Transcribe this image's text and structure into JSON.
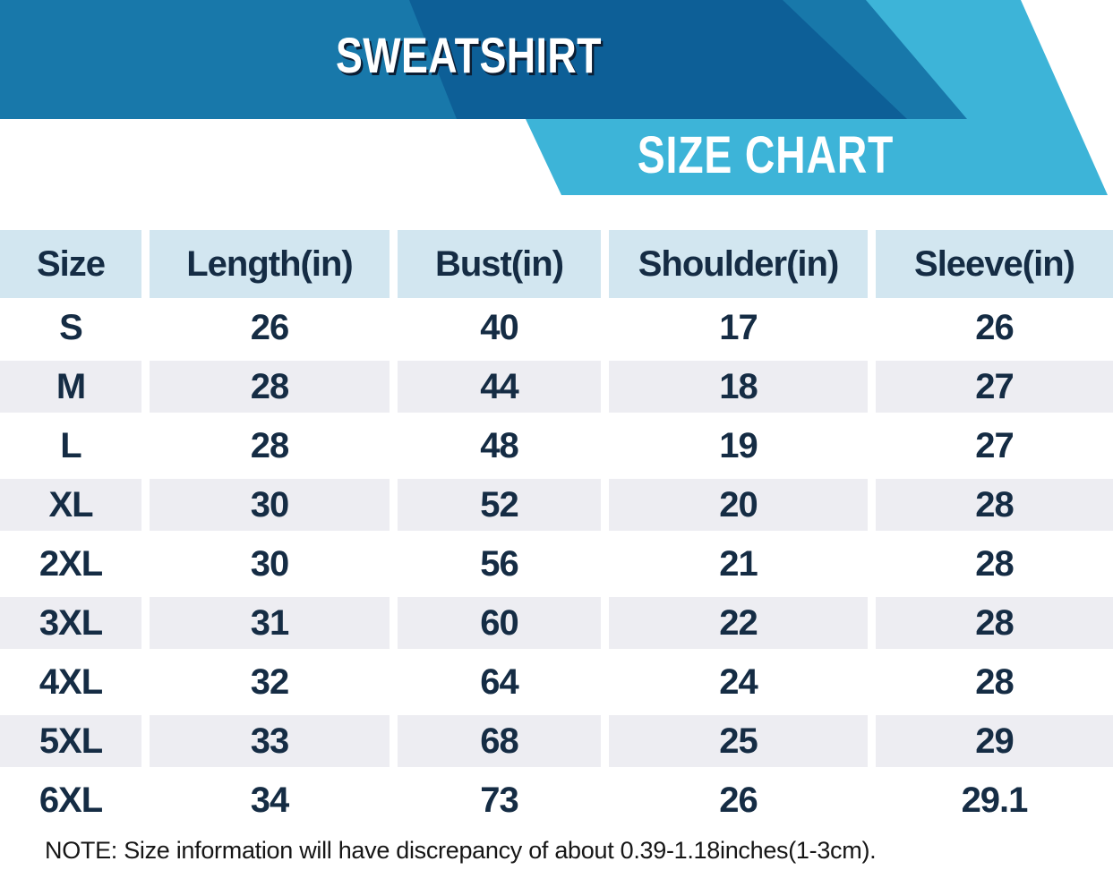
{
  "banner": {
    "product_title": "SWEATSHIRT",
    "chart_title": "SIZE CHART",
    "colors": {
      "ribbon_blue": "#1878aa",
      "ribbon_dark_blue": "#0d5f97",
      "ribbon_cyan": "#3db4d8",
      "title_text": "#ffffff",
      "title_shadow": "#0b1d33"
    }
  },
  "chart_data": {
    "type": "table",
    "title": "SWEATSHIRT SIZE CHART",
    "units": "inches",
    "columns": [
      "Size",
      "Length(in)",
      "Bust(in)",
      "Shoulder(in)",
      "Sleeve(in)"
    ],
    "rows": [
      [
        "S",
        "26",
        "40",
        "17",
        "26"
      ],
      [
        "M",
        "28",
        "44",
        "18",
        "27"
      ],
      [
        "L",
        "28",
        "48",
        "19",
        "27"
      ],
      [
        "XL",
        "30",
        "52",
        "20",
        "28"
      ],
      [
        "2XL",
        "30",
        "56",
        "21",
        "28"
      ],
      [
        "3XL",
        "31",
        "60",
        "22",
        "28"
      ],
      [
        "4XL",
        "32",
        "64",
        "24",
        "28"
      ],
      [
        "5XL",
        "33",
        "68",
        "25",
        "29"
      ],
      [
        "6XL",
        "34",
        "73",
        "26",
        "29.1"
      ]
    ],
    "layout": {
      "striped": true,
      "header_bg": "#d2e6f0",
      "stripe_bg": "#ededf2",
      "text_color": "#152c44",
      "legend": "none",
      "grid": "off"
    }
  },
  "note": "NOTE: Size information will have discrepancy of about 0.39-1.18inches(1-3cm)."
}
